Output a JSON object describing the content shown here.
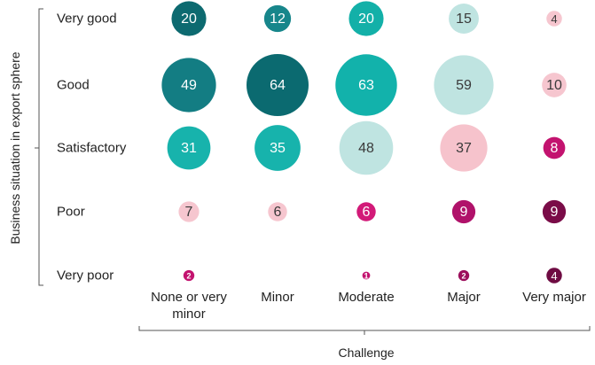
{
  "chart_data": {
    "type": "bubble-matrix",
    "x_label": "Challenge",
    "y_label": "Business situation in export sphere",
    "categories": [
      "None or very minor",
      "Minor",
      "Moderate",
      "Major",
      "Very major"
    ],
    "rows": [
      "Very good",
      "Good",
      "Satisfactory",
      "Poor",
      "Very poor"
    ],
    "values": [
      [
        20,
        12,
        20,
        15,
        4
      ],
      [
        49,
        64,
        63,
        59,
        10
      ],
      [
        31,
        35,
        48,
        37,
        8
      ],
      [
        7,
        6,
        6,
        9,
        9
      ],
      [
        2,
        null,
        1,
        2,
        4
      ]
    ],
    "colors": [
      [
        "#0d6a70",
        "#17868b",
        "#13b0a8",
        "#bfe4e1",
        "#f6c6cf"
      ],
      [
        "#137d83",
        "#0b6a70",
        "#12b2ab",
        "#bfe4e1",
        "#f6c6cf"
      ],
      [
        "#17b3ac",
        "#17b3ac",
        "#bfe4e1",
        "#f6c3cc",
        "#c3136f"
      ],
      [
        "#f6c6cf",
        "#f6c6cf",
        "#d21a78",
        "#b0126a",
        "#7a0c48"
      ],
      [
        "#c3136f",
        null,
        "#c3136f",
        "#9c0f5c",
        "#6e0b42"
      ]
    ]
  }
}
